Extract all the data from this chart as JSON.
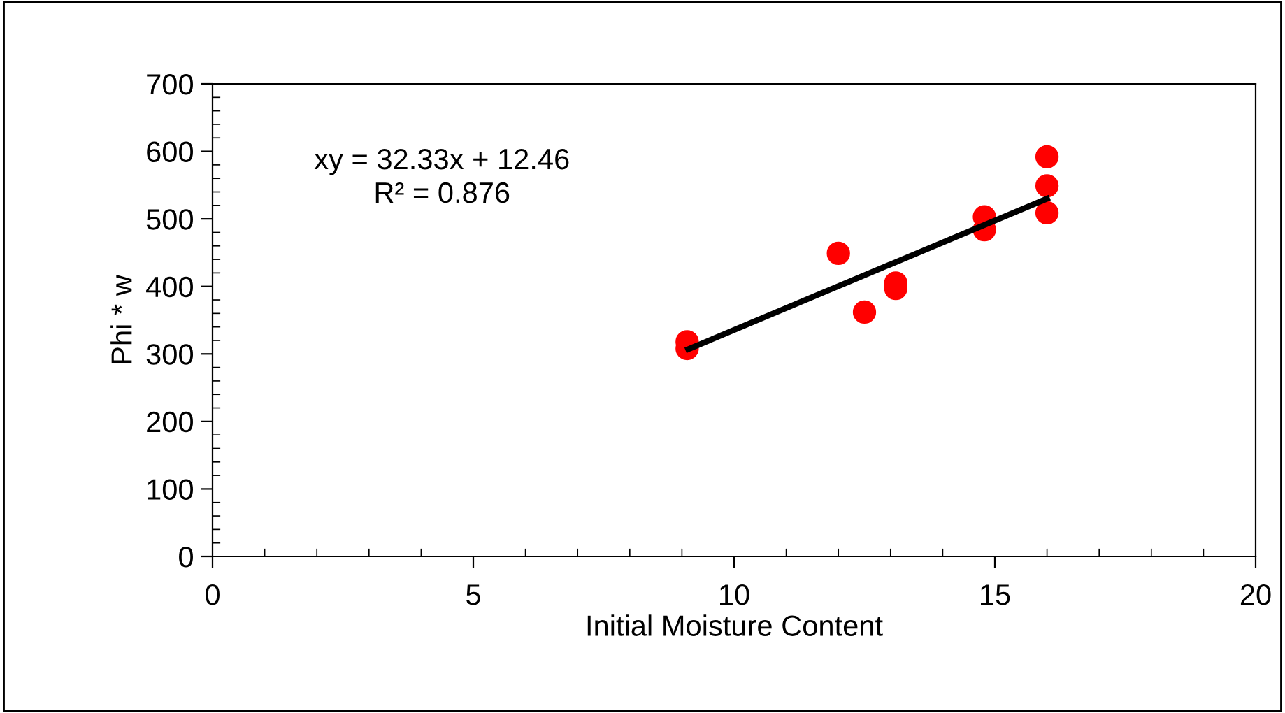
{
  "chart_data": {
    "type": "scatter",
    "xlabel": "Initial Moisture Content",
    "ylabel": "Phi * w",
    "xlim": [
      0,
      20
    ],
    "xticks": [
      0,
      5,
      10,
      15,
      20
    ],
    "ylim": [
      0,
      700
    ],
    "yticks": [
      0,
      100,
      200,
      300,
      400,
      500,
      600,
      700
    ],
    "grid": false,
    "legend": false,
    "annotations": [
      "xy = 32.33x + 12.46\nR² = 0.876"
    ],
    "series": [
      {
        "color": "#ff0000",
        "marker": "circle",
        "x": [
          9.1,
          9.1,
          12.0,
          12.5,
          13.1,
          13.1,
          14.8,
          14.8,
          16.0,
          16.0,
          16.0
        ],
        "values": [
          318,
          308,
          449,
          362,
          405,
          397,
          503,
          484,
          592,
          549,
          509
        ]
      },
      {
        "type": "line",
        "color": "#000000",
        "line_style": "solid",
        "x": [
          9.12,
          16.0
        ],
        "values": [
          307,
          530
        ]
      }
    ]
  }
}
